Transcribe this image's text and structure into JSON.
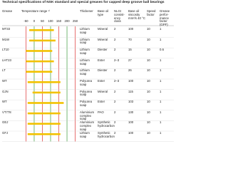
{
  "header": {
    "title": "Technical specifications of NSK standard and special greases for capped deep groove ball bearings"
  },
  "table": {
    "columns": [
      "Grease",
      "Temperature range ¹⁾",
      "Thickener",
      "Base oil type",
      "NLGI consist-ency class",
      "Base oil viscosity mm²/s 40 °C",
      "Speed factor",
      "Grease perfor-mance factor (GPF)"
    ],
    "temp_ticks": [
      -50,
      0,
      50,
      100,
      150,
      200,
      250
    ],
    "temp_lim": [
      -65,
      265
    ],
    "rows": [
      {
        "cells": [
          "MT33",
          "Lithium soap",
          "Mineral",
          "2",
          "100",
          "10",
          "1"
        ],
        "temp": [
          -30,
          120
        ]
      },
      {
        "cells": [
          "M1W",
          "Lithium soap",
          "Mineral",
          "2",
          "70",
          "10",
          "1"
        ],
        "temp": [
          -30,
          130
        ]
      },
      {
        "cells": [
          "LT10",
          "Lithium soap",
          "Diester",
          "2",
          "15",
          "10",
          "0.6"
        ],
        "temp": [
          -50,
          110
        ]
      },
      {
        "cells": [
          "LHT23",
          "Lithium soap",
          "Ester",
          "2–3",
          "27",
          "10",
          "1"
        ],
        "temp": [
          -50,
          120
        ]
      },
      {
        "cells": [
          "LT",
          "Lithium soap",
          "Diester",
          "2",
          "26",
          "10",
          "1"
        ],
        "temp": [
          -50,
          110
        ]
      },
      {
        "cells": [
          "WT",
          "Polyurea soap",
          "Ester",
          "2–3",
          "100",
          "10",
          "1"
        ],
        "temp": [
          -40,
          160
        ]
      },
      {
        "cells": [
          "GJN",
          "Polyurea soap",
          "Mineral",
          "2",
          "115",
          "10",
          "1"
        ],
        "temp": [
          -10,
          160
        ]
      },
      {
        "cells": [
          "WT",
          "Polyurea soap",
          "Ester",
          "2",
          "103",
          "10",
          "1"
        ],
        "temp": [
          -40,
          180
        ]
      },
      {
        "cells": [
          "VT778",
          "Aluminium complex soap",
          "PAO",
          "2",
          "130",
          "10",
          "1"
        ],
        "temp": [
          -40,
          160
        ]
      },
      {
        "cells": [
          "GEJ",
          "Aluminium complex soap",
          "Synthetic hydrocarbon",
          "2",
          "100",
          "10",
          "1"
        ],
        "temp": [
          -40,
          160
        ]
      },
      {
        "cells": [
          "GFJ",
          "Lithium soap",
          "Synthetic hydrocarbon",
          "2",
          "100",
          "10",
          "1"
        ],
        "temp": [
          -40,
          160
        ]
      }
    ]
  }
}
